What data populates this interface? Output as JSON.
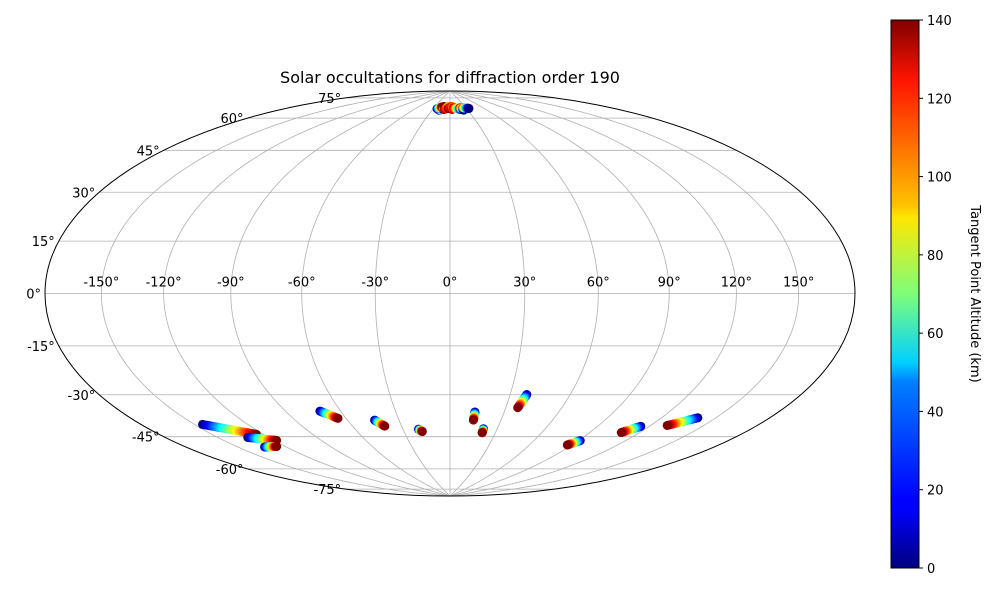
{
  "chart_data": {
    "type": "scatter",
    "projection": "hammer",
    "title": "Solar occultations for diffraction order 190",
    "xlabel": "",
    "ylabel": "",
    "grid": true,
    "lon_ticks": [
      -150,
      -120,
      -90,
      -60,
      -30,
      0,
      30,
      60,
      90,
      120,
      150
    ],
    "lon_tick_labels": [
      "-150°",
      "-120°",
      "-90°",
      "-60°",
      "-30°",
      "0°",
      "30°",
      "60°",
      "90°",
      "120°",
      "150°"
    ],
    "lat_ticks": [
      -75,
      -60,
      -45,
      -30,
      -15,
      0,
      15,
      30,
      45,
      60,
      75
    ],
    "lat_tick_labels": [
      "-75°",
      "-60°",
      "-45°",
      "-30°",
      "-15°",
      "0°",
      "15°",
      "30°",
      "45°",
      "60°",
      "75°"
    ],
    "colorbar": {
      "label": "Tangent Point Altitude (km)",
      "colormap": "jet",
      "range": [
        0,
        140
      ],
      "ticks": [
        0,
        20,
        40,
        60,
        80,
        100,
        120,
        140
      ],
      "tick_labels": [
        "0",
        "20",
        "40",
        "60",
        "80",
        "100",
        "120",
        "140"
      ]
    },
    "occultations": [
      {
        "lon_start": -145.5,
        "lat_start": -45.3,
        "lon_end": -124.1,
        "lat_end": -52.1,
        "alt_start": 0,
        "alt_end": 140
      },
      {
        "lon_start": -132.5,
        "lat_start": -52.5,
        "lon_end": -118.3,
        "lat_end": -55.5,
        "alt_start": 0,
        "alt_end": 140
      },
      {
        "lon_start": -133.7,
        "lat_start": -56.7,
        "lon_end": -125.5,
        "lat_end": -57.5,
        "alt_start": 0,
        "alt_end": 140
      },
      {
        "lon_start": -71.3,
        "lat_start": -46.5,
        "lon_end": -64.6,
        "lat_end": -50.0,
        "alt_start": 0,
        "alt_end": 140
      },
      {
        "lon_start": -44.3,
        "lat_start": -51.7,
        "lon_end": -40.3,
        "lat_end": -54.5,
        "alt_start": 0,
        "alt_end": 140
      },
      {
        "lon_start": -20.1,
        "lat_start": -56.4,
        "lon_end": -18.1,
        "lat_end": -57.5,
        "alt_start": 0,
        "alt_end": 140
      },
      {
        "lon_start": 13.8,
        "lat_start": -48.8,
        "lon_end": 13.8,
        "lat_end": -52.4,
        "alt_start": 0,
        "alt_end": 140
      },
      {
        "lon_start": 21.3,
        "lat_start": -56.2,
        "lon_end": 21.3,
        "lat_end": -58.0,
        "alt_start": 0,
        "alt_end": 140
      },
      {
        "lon_start": 38.3,
        "lat_start": -40.8,
        "lon_end": 36.4,
        "lat_end": -46.5,
        "alt_start": 0,
        "alt_end": 140
      },
      {
        "lon_start": 91.1,
        "lat_start": -58.2,
        "lon_end": 86.8,
        "lat_end": -60.6,
        "alt_start": 0,
        "alt_end": 140
      },
      {
        "lon_start": 115.1,
        "lat_start": -49.6,
        "lon_end": 109.1,
        "lat_end": -52.9,
        "alt_start": 0,
        "alt_end": 140
      },
      {
        "lon_start": 140.0,
        "lat_start": -43.3,
        "lon_end": 129.4,
        "lat_end": -47.7,
        "alt_start": 0,
        "alt_end": 140
      },
      {
        "lon_start": -18.5,
        "lat_start": 79.5,
        "lon_end": -16.5,
        "lat_end": 80.5,
        "alt_start": 0,
        "alt_end": 140
      },
      {
        "lon_start": -23.5,
        "lat_start": 80.2,
        "lon_end": -15.4,
        "lat_end": 81.3,
        "alt_start": 0,
        "alt_end": 140
      },
      {
        "lon_start": -11.5,
        "lat_start": 80.0,
        "lon_end": -12.0,
        "lat_end": 81.5,
        "alt_start": 0,
        "alt_end": 140
      },
      {
        "lon_start": -10.0,
        "lat_start": 80.0,
        "lon_end": -4.0,
        "lat_end": 81.5,
        "alt_start": 140,
        "alt_end": 100
      },
      {
        "lon_start": -3.5,
        "lat_start": 80.5,
        "lon_end": 3.0,
        "lat_end": 81.5,
        "alt_start": 140,
        "alt_end": 120
      },
      {
        "lon_start": 3.5,
        "lat_start": 80.0,
        "lon_end": 5.5,
        "lat_end": 81.3,
        "alt_start": 140,
        "alt_end": 110
      },
      {
        "lon_start": 7.0,
        "lat_start": 80.8,
        "lon_end": 19.0,
        "lat_end": 79.8,
        "alt_start": 140,
        "alt_end": 20
      },
      {
        "lon_start": 19.0,
        "lat_start": 80.8,
        "lon_end": 23.5,
        "lat_end": 79.5,
        "alt_start": 140,
        "alt_end": 0
      },
      {
        "lon_start": 24.5,
        "lat_start": 80.8,
        "lon_end": 34.5,
        "lat_end": 80.2,
        "alt_start": 120,
        "alt_end": 0
      }
    ]
  }
}
